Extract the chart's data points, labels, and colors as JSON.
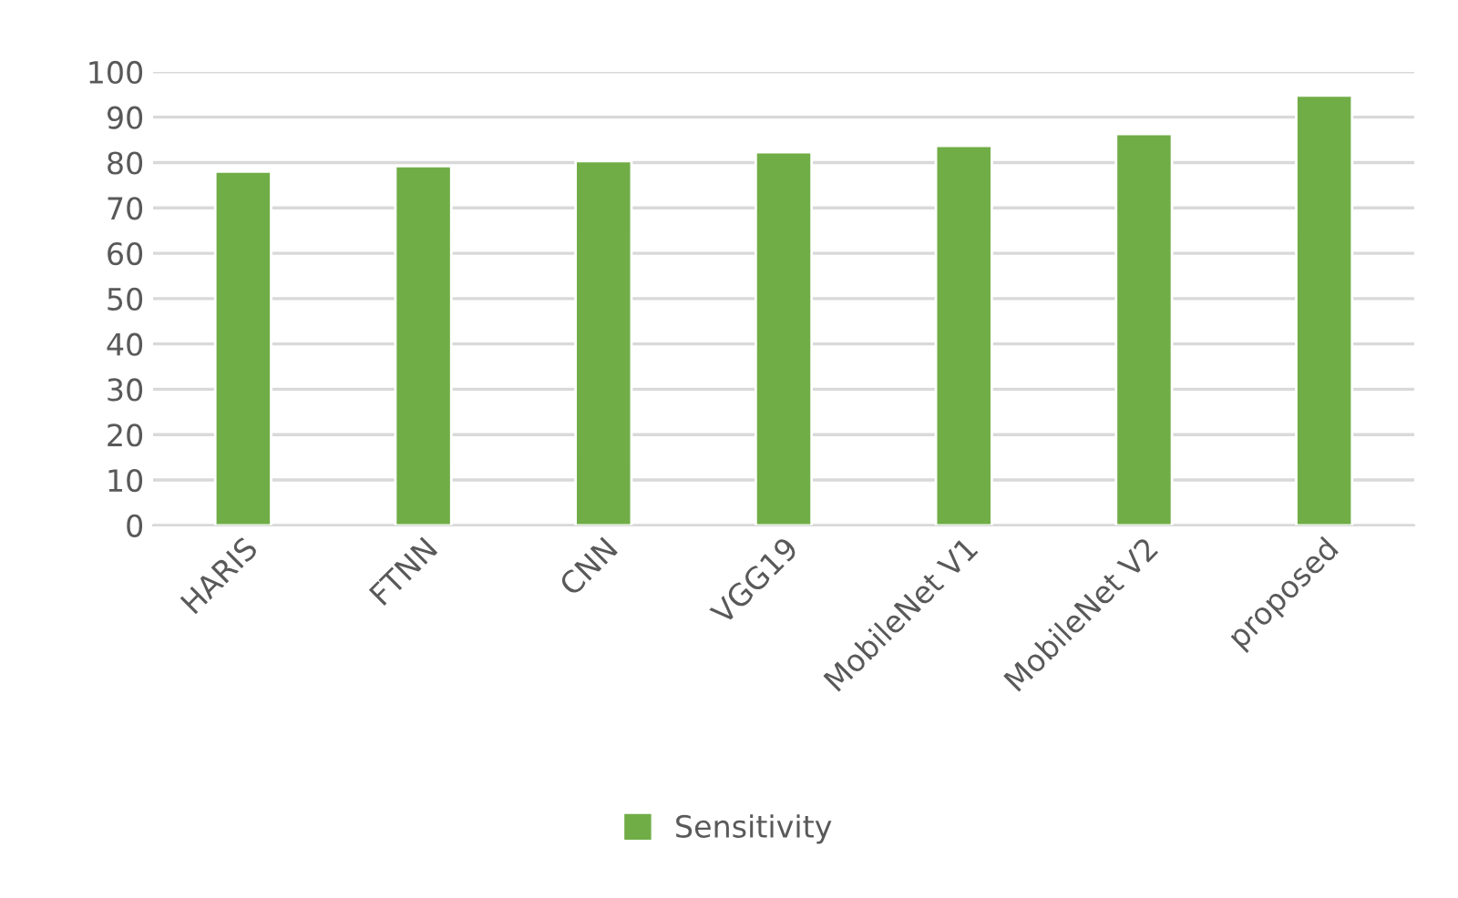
{
  "chart_data": {
    "type": "bar",
    "categories": [
      "HARIS",
      "FTNN",
      "CNN",
      "VGG19",
      "MobileNet V1",
      "MobileNet V2",
      "proposed"
    ],
    "series": [
      {
        "name": "Sensitivity",
        "color": "#70ad47",
        "values": [
          78,
          79.2,
          80.3,
          82.3,
          83.7,
          86.3,
          94.8
        ]
      }
    ],
    "ylim": [
      0,
      100
    ],
    "yticks": [
      0,
      10,
      20,
      30,
      40,
      50,
      60,
      70,
      80,
      90,
      100
    ],
    "grid": "y",
    "legend": "bottom"
  }
}
